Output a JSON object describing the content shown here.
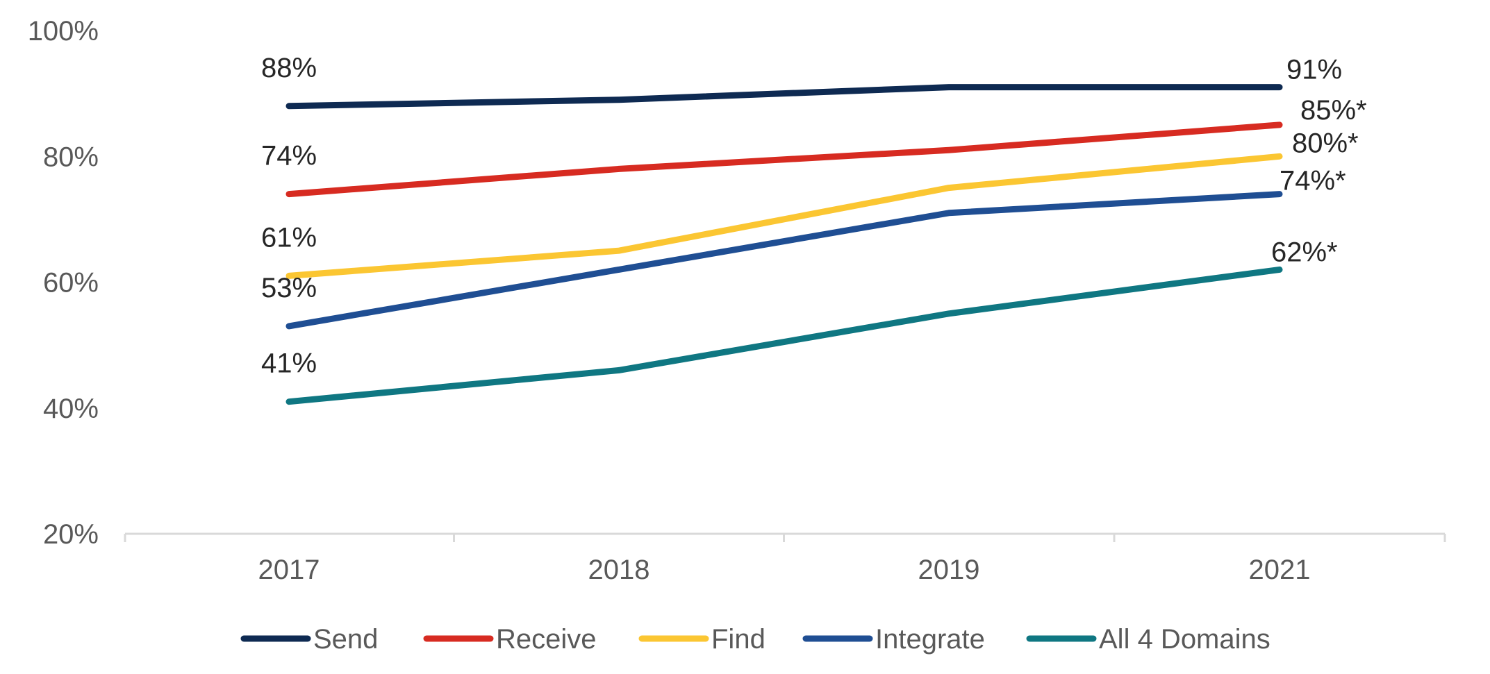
{
  "chart_data": {
    "type": "line",
    "title": "",
    "xlabel": "",
    "ylabel": "",
    "categories": [
      "2017",
      "2018",
      "2019",
      "2021"
    ],
    "ylim": [
      20,
      100
    ],
    "yticks": [
      20,
      40,
      60,
      80,
      100
    ],
    "ytick_labels": [
      "20%",
      "40%",
      "60%",
      "80%",
      "100%"
    ],
    "legend_position": "bottom",
    "grid": false,
    "series": [
      {
        "name": "Send",
        "color": "#0e2a52",
        "values": [
          88,
          89,
          91,
          91
        ],
        "label_first": "88%",
        "label_last": "91%"
      },
      {
        "name": "Receive",
        "color": "#d72b21",
        "values": [
          74,
          78,
          81,
          85
        ],
        "label_first": "74%",
        "label_last": "85%*"
      },
      {
        "name": "Find",
        "color": "#fbc632",
        "values": [
          61,
          65,
          75,
          80
        ],
        "label_first": "61%",
        "label_last": "80%*"
      },
      {
        "name": "Integrate",
        "color": "#1f4e93",
        "values": [
          53,
          62,
          71,
          74
        ],
        "label_first": "53%",
        "label_last": "74%*"
      },
      {
        "name": "All 4 Domains",
        "color": "#0f7782",
        "values": [
          41,
          46,
          55,
          62
        ],
        "label_first": "41%",
        "label_last": "62%*"
      }
    ]
  }
}
